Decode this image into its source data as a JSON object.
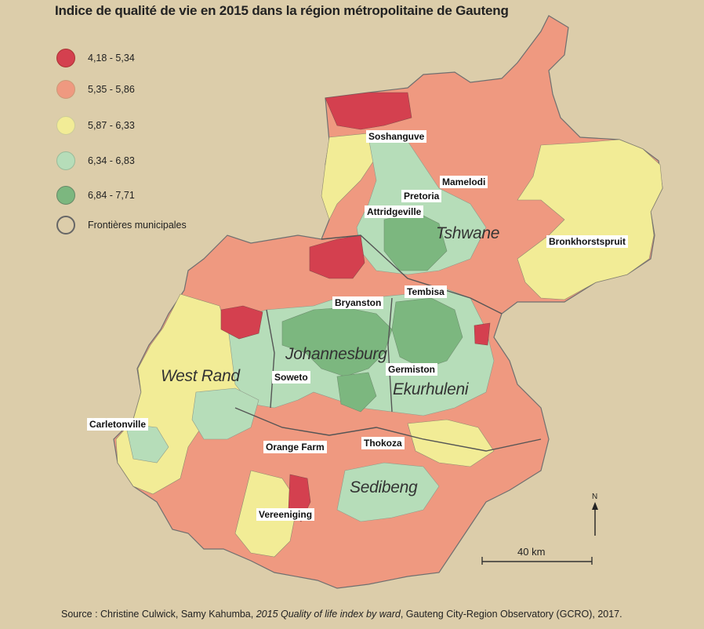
{
  "title": "Indice de qualité de vie en 2015 dans la région métropolitaine de Gauteng",
  "legend": [
    {
      "label": "4,18 - 5,34",
      "color": "#d4404f"
    },
    {
      "label": "5,35 - 5,86",
      "color": "#ef9980"
    },
    {
      "label": "5,87 - 6,33",
      "color": "#f2ec96"
    },
    {
      "label": "6,34 - 6,83",
      "color": "#b6ddb9"
    },
    {
      "label": "6,84 - 7,71",
      "color": "#7cb77f"
    },
    {
      "label": "Frontières municipales",
      "color": "none"
    }
  ],
  "places": {
    "soshanguve": "Soshanguve",
    "mamelodi": "Mamelodi",
    "pretoria": "Pretoria",
    "attridgeville": "Attridgeville",
    "bronkhorstspruit": "Bronkhorstspruit",
    "bryanston": "Bryanston",
    "tembisa": "Tembisa",
    "germiston": "Germiston",
    "soweto": "Soweto",
    "carletonville": "Carletonville",
    "orange_farm": "Orange Farm",
    "thokoza": "Thokoza",
    "vereeniging": "Vereeniging"
  },
  "regions": {
    "tshwane": "Tshwane",
    "johannesburg": "Johannesburg",
    "west_rand": "West Rand",
    "ekurhuleni": "Ekurhuleni",
    "sedibeng": "Sedibeng"
  },
  "scale": {
    "label": "40 km"
  },
  "north": {
    "label": "N"
  },
  "source": {
    "prefix": "Source : Christine Culwick, Samy Kahumba, ",
    "title": "2015 Quality of life index by ward",
    "suffix": ", Gauteng City-Region Observatory (GCRO), 2017."
  }
}
